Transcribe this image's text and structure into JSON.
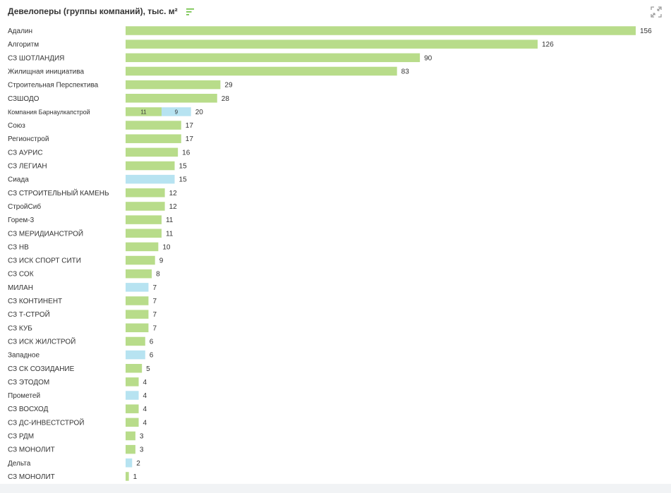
{
  "header": {
    "title": "Девелоперы (группы компаний), тыс. м²",
    "sort_icon": "sort-bars-icon",
    "expand_icon": "collapse-arrows-icon"
  },
  "colors": {
    "green": "#b8dc8a",
    "blue": "#b7e3f1",
    "accent": "#6cbf3f",
    "icon_gray": "#9a9a9a"
  },
  "chart_data": {
    "type": "bar",
    "orientation": "horizontal",
    "stacked": true,
    "title": "Девелоперы (группы компаний), тыс. м²",
    "categories": [
      "Адалин",
      "Алгоритм",
      "СЗ ШОТЛАНДИЯ",
      "Жилищная инициатива",
      "Строительная Перспектива",
      "СЗШОДО",
      "Компания Барнаулкапстрой",
      "Союз",
      "Регионстрой",
      "СЗ АУРИС",
      "СЗ ЛЕГИАН",
      "Сиада",
      "СЗ СТРОИТЕЛЬНЫЙ КАМЕНЬ",
      "СтройСиб",
      "Горем-3",
      "СЗ МЕРИДИАНСТРОЙ",
      "СЗ НВ",
      "СЗ ИСК СПОРТ СИТИ",
      "СЗ СОК",
      "МИЛАН",
      "СЗ КОНТИНЕНТ",
      "СЗ Т-СТРОЙ",
      "СЗ КУБ",
      "СЗ ИСК ЖИЛСТРОЙ",
      "Западное",
      "СЗ СК СОЗИДАНИЕ",
      "СЗ ЭТОДОМ",
      "Прометей",
      "СЗ ВОСХОД",
      "СЗ ДС-ИНВЕСТСТРОЙ",
      "СЗ РДМ",
      "СЗ МОНОЛИТ",
      "Дельта",
      "СЗ МОНОЛИТ"
    ],
    "series": [
      {
        "color": "#b8dc8a",
        "values": [
          156,
          126,
          90,
          83,
          29,
          28,
          11,
          17,
          17,
          16,
          15,
          0,
          12,
          12,
          11,
          11,
          10,
          9,
          8,
          0,
          7,
          7,
          7,
          6,
          0,
          5,
          4,
          0,
          4,
          4,
          3,
          3,
          0,
          1
        ]
      },
      {
        "color": "#b7e3f1",
        "values": [
          0,
          0,
          0,
          0,
          0,
          0,
          9,
          0,
          0,
          0,
          0,
          15,
          0,
          0,
          0,
          0,
          0,
          0,
          0,
          7,
          0,
          0,
          0,
          0,
          6,
          0,
          0,
          4,
          0,
          0,
          0,
          0,
          2,
          0
        ]
      }
    ],
    "totals": [
      156,
      126,
      90,
      83,
      29,
      28,
      20,
      17,
      17,
      16,
      15,
      15,
      12,
      12,
      11,
      11,
      10,
      9,
      8,
      7,
      7,
      7,
      7,
      6,
      6,
      5,
      4,
      4,
      4,
      4,
      3,
      3,
      2,
      1
    ],
    "segment_labels_row": 6,
    "xlim": [
      0,
      156
    ],
    "grid": false,
    "legend": "none"
  }
}
